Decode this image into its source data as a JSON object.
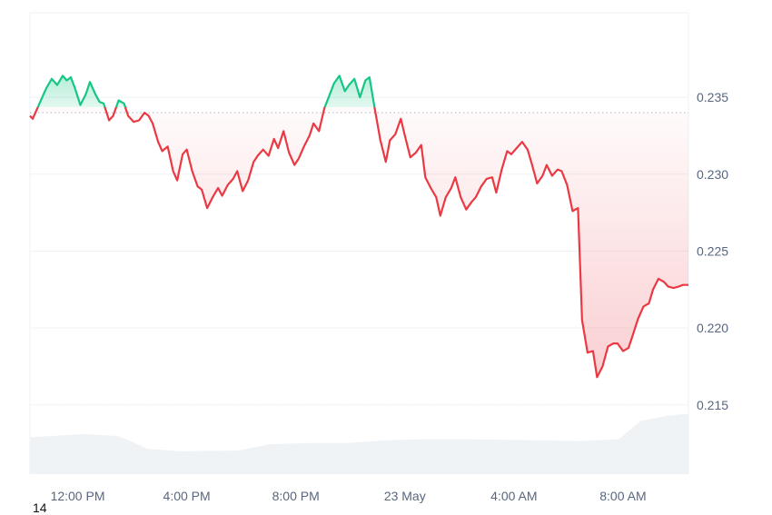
{
  "chart_data": {
    "type": "line",
    "title": "",
    "xlabel": "",
    "ylabel": "",
    "baseline": 0.234,
    "ylim": [
      0.2105,
      0.2405
    ],
    "y_ticks": [
      "0.215",
      "0.220",
      "0.225",
      "0.230",
      "0.235"
    ],
    "x_tick_labels": [
      "12:00 PM",
      "4:00 PM",
      "8:00 PM",
      "23 May",
      "4:00 AM",
      "8:00 AM"
    ],
    "x_ticks": [
      1.75,
      5.75,
      9.75,
      13.75,
      17.75,
      21.75
    ],
    "xlim": [
      0,
      24.15
    ],
    "colors": {
      "above": "#16c784",
      "below": "#ea3943",
      "baseline": "#b8bec9",
      "grid": "#eff2f5",
      "volume": "#eff2f5",
      "axis_text": "#58667e"
    },
    "price_series": {
      "x": [
        0.0,
        0.1,
        0.25,
        0.45,
        0.6,
        0.8,
        1.0,
        1.2,
        1.35,
        1.5,
        1.65,
        1.85,
        2.05,
        2.2,
        2.4,
        2.55,
        2.7,
        2.9,
        3.05,
        3.25,
        3.45,
        3.6,
        3.8,
        4.0,
        4.2,
        4.35,
        4.5,
        4.7,
        4.85,
        5.05,
        5.25,
        5.4,
        5.6,
        5.75,
        5.95,
        6.15,
        6.3,
        6.5,
        6.7,
        6.9,
        7.05,
        7.25,
        7.45,
        7.6,
        7.8,
        8.0,
        8.2,
        8.35,
        8.55,
        8.75,
        8.95,
        9.1,
        9.3,
        9.5,
        9.7,
        9.85,
        10.05,
        10.25,
        10.4,
        10.6,
        10.8,
        11.0,
        11.15,
        11.35,
        11.55,
        11.7,
        11.9,
        12.1,
        12.3,
        12.45,
        12.65,
        12.85,
        13.05,
        13.2,
        13.4,
        13.6,
        13.75,
        13.95,
        14.15,
        14.35,
        14.5,
        14.7,
        14.9,
        15.05,
        15.25,
        15.45,
        15.6,
        15.8,
        16.0,
        16.2,
        16.35,
        16.55,
        16.75,
        16.95,
        17.1,
        17.3,
        17.5,
        17.65,
        17.85,
        18.05,
        18.25,
        18.4,
        18.6,
        18.8,
        18.95,
        19.15,
        19.35,
        19.5,
        19.7,
        19.9,
        20.1,
        20.25,
        20.45,
        20.65,
        20.8,
        21.0,
        21.2,
        21.4,
        21.55,
        21.75,
        21.95,
        22.1,
        22.3,
        22.5,
        22.7,
        22.85,
        23.05,
        23.25,
        23.4,
        23.6,
        23.8,
        23.95,
        24.15
      ],
      "y": [
        0.2338,
        0.2336,
        0.2342,
        0.235,
        0.2356,
        0.2362,
        0.2358,
        0.2364,
        0.2361,
        0.2363,
        0.2356,
        0.2345,
        0.2352,
        0.236,
        0.2352,
        0.2347,
        0.2346,
        0.2335,
        0.2338,
        0.2348,
        0.2346,
        0.2338,
        0.2334,
        0.2335,
        0.234,
        0.2338,
        0.2333,
        0.2321,
        0.2315,
        0.2318,
        0.2302,
        0.2296,
        0.2313,
        0.2316,
        0.2302,
        0.2292,
        0.229,
        0.2278,
        0.2285,
        0.2291,
        0.2286,
        0.2293,
        0.2297,
        0.2302,
        0.2289,
        0.2296,
        0.2308,
        0.2312,
        0.2316,
        0.2312,
        0.2323,
        0.2317,
        0.2328,
        0.2314,
        0.2306,
        0.231,
        0.2318,
        0.2325,
        0.2333,
        0.2328,
        0.2343,
        0.2352,
        0.2359,
        0.2364,
        0.2354,
        0.2358,
        0.2362,
        0.235,
        0.2361,
        0.2363,
        0.2342,
        0.2322,
        0.2308,
        0.2322,
        0.2326,
        0.2336,
        0.2325,
        0.2311,
        0.2314,
        0.2319,
        0.2298,
        0.2291,
        0.2285,
        0.2273,
        0.2285,
        0.2291,
        0.2298,
        0.2285,
        0.2277,
        0.2282,
        0.2285,
        0.2292,
        0.2297,
        0.2298,
        0.2288,
        0.2303,
        0.2315,
        0.2313,
        0.2317,
        0.2321,
        0.2316,
        0.2307,
        0.2294,
        0.2299,
        0.2306,
        0.2299,
        0.2303,
        0.2302,
        0.2293,
        0.2276,
        0.2278,
        0.2205,
        0.2184,
        0.2185,
        0.2168,
        0.2175,
        0.2188,
        0.219,
        0.219,
        0.2185,
        0.2187,
        0.2195,
        0.2206,
        0.2214,
        0.2216,
        0.2225,
        0.2232,
        0.223,
        0.2227,
        0.2226,
        0.2227,
        0.2228,
        0.2228
      ]
    },
    "volume_series": {
      "x": [
        0,
        2,
        3.2,
        3.7,
        4.3,
        5.5,
        7.6,
        8.2,
        8.8,
        10.2,
        11.6,
        13.0,
        14.5,
        16.0,
        17.4,
        18.8,
        20.2,
        21.6,
        22.4,
        23.4,
        24.15
      ],
      "values": [
        0.58,
        0.63,
        0.6,
        0.52,
        0.4,
        0.36,
        0.37,
        0.42,
        0.47,
        0.49,
        0.49,
        0.53,
        0.55,
        0.55,
        0.54,
        0.53,
        0.52,
        0.55,
        0.84,
        0.92,
        0.95
      ]
    }
  },
  "corner_note": "14"
}
